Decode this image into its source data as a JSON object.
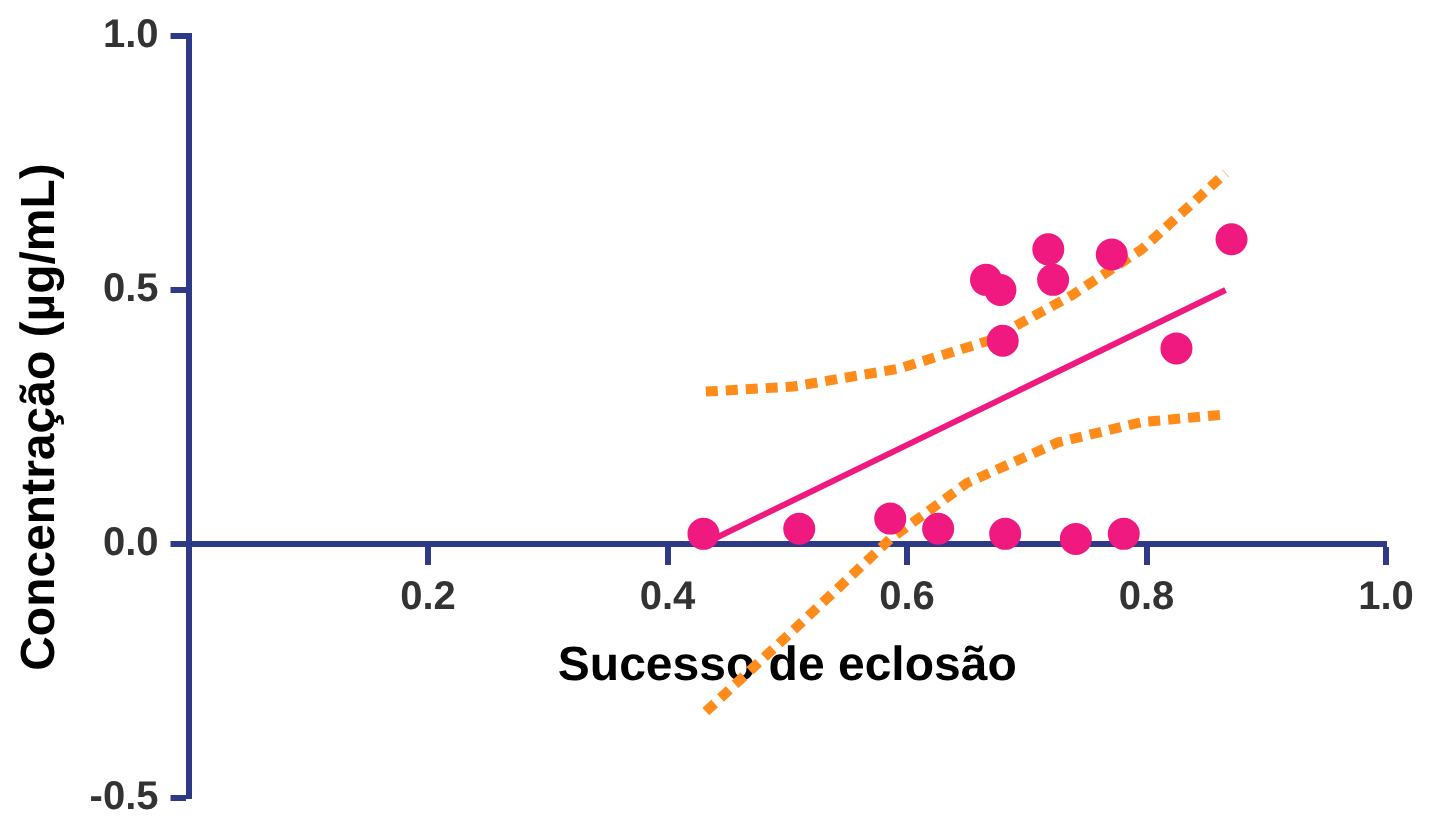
{
  "chart_data": {
    "type": "scatter",
    "xlabel": "Sucesso de eclosão",
    "ylabel": "Concentração (µg/mL)",
    "xlim": [
      0,
      1
    ],
    "ylim": [
      -0.5,
      1
    ],
    "xticks": [
      {
        "value": 0.2,
        "label": "0.2"
      },
      {
        "value": 0.4,
        "label": "0.4"
      },
      {
        "value": 0.6,
        "label": "0.6"
      },
      {
        "value": 0.8,
        "label": "0.8"
      },
      {
        "value": 1,
        "label": "1.0"
      }
    ],
    "yticks": [
      {
        "value": -0.5,
        "label": "-0.5"
      },
      {
        "value": 0,
        "label": "0.0"
      },
      {
        "value": 0.5,
        "label": "0.5"
      },
      {
        "value": 1,
        "label": "1.0"
      }
    ],
    "grid": false,
    "marker": "circle",
    "series": [
      {
        "color": "#f0197f",
        "x": [
          0.43,
          0.51,
          0.586,
          0.626,
          0.666,
          0.678,
          0.68,
          0.682,
          0.718,
          0.722,
          0.741,
          0.771,
          0.781,
          0.825,
          0.871
        ],
        "values": [
          0.02,
          0.03,
          0.05,
          0.03,
          0.52,
          0.5,
          0.4,
          0.02,
          0.58,
          0.52,
          0.01,
          0.57,
          0.02,
          0.385,
          0.6
        ]
      },
      {
        "type": "line",
        "color": "#f0197f",
        "line_style": "solid",
        "marker": "none",
        "x": [
          0.43,
          0.866
        ],
        "values": [
          0,
          0.5
        ]
      },
      {
        "type": "line",
        "color": "#ff8c1a",
        "line_style": "dotted",
        "marker": "none",
        "x": [
          0.432,
          0.505,
          0.593,
          0.668,
          0.738,
          0.796,
          0.866
        ],
        "values": [
          0.3,
          0.31,
          0.345,
          0.4,
          0.49,
          0.58,
          0.73
        ]
      },
      {
        "type": "line",
        "color": "#ff8c1a",
        "line_style": "dotted",
        "marker": "none",
        "x": [
          0.432,
          0.505,
          0.586,
          0.65,
          0.726,
          0.796,
          0.866
        ],
        "values": [
          -0.33,
          -0.17,
          0.01,
          0.12,
          0.2,
          0.24,
          0.255
        ]
      }
    ]
  }
}
